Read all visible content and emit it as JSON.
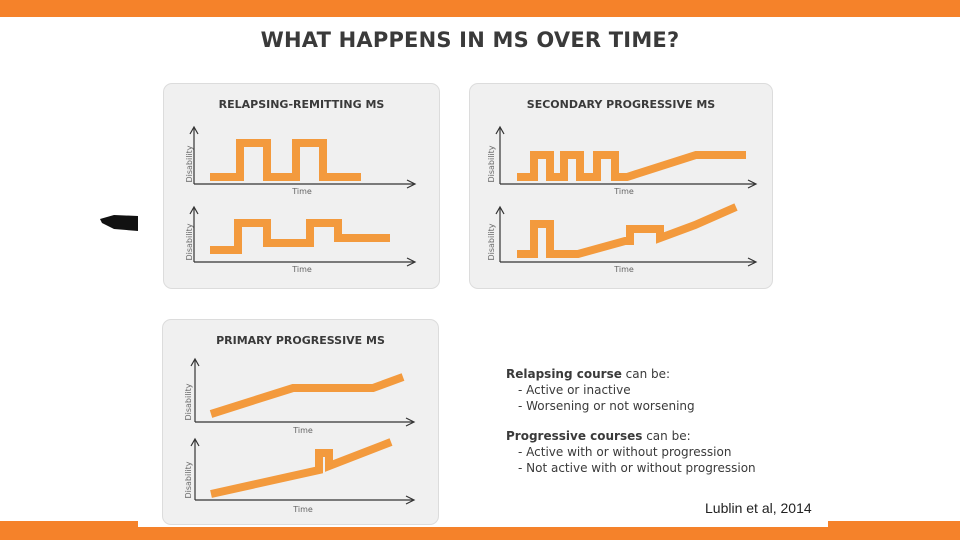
{
  "title": "WHAT HAPPENS IN MS OVER TIME?",
  "colors": {
    "accent": "#f5822a",
    "line": "#f39a3d",
    "axis": "#333333",
    "panel": "#f0f0f0"
  },
  "panels": {
    "rr": {
      "title": "RELAPSING-REMITTING MS",
      "top_ylabel": "Disability",
      "top_xlabel": "Time",
      "bottom_ylabel": "Disability",
      "bottom_xlabel": "Time"
    },
    "sp": {
      "title": "SECONDARY PROGRESSIVE MS",
      "top_ylabel": "Disability",
      "top_xlabel": "Time",
      "bottom_ylabel": "Disability",
      "bottom_xlabel": "Time"
    },
    "pp": {
      "title": "PRIMARY PROGRESSIVE MS",
      "top_ylabel": "Disability",
      "top_xlabel": "Time",
      "bottom_ylabel": "Disability",
      "bottom_xlabel": "Time"
    }
  },
  "notes": {
    "relapsing_bold": "Relapsing course",
    "relapsing_rest": " can be:",
    "relapsing_items": [
      "- Active or inactive",
      "- Worsening or not worsening"
    ],
    "progressive_bold": "Progressive courses",
    "progressive_rest": " can be:",
    "progressive_items": [
      "- Active with or without progression",
      "- Not active with or without progression"
    ]
  },
  "citation": "Lublin et al, 2014"
}
